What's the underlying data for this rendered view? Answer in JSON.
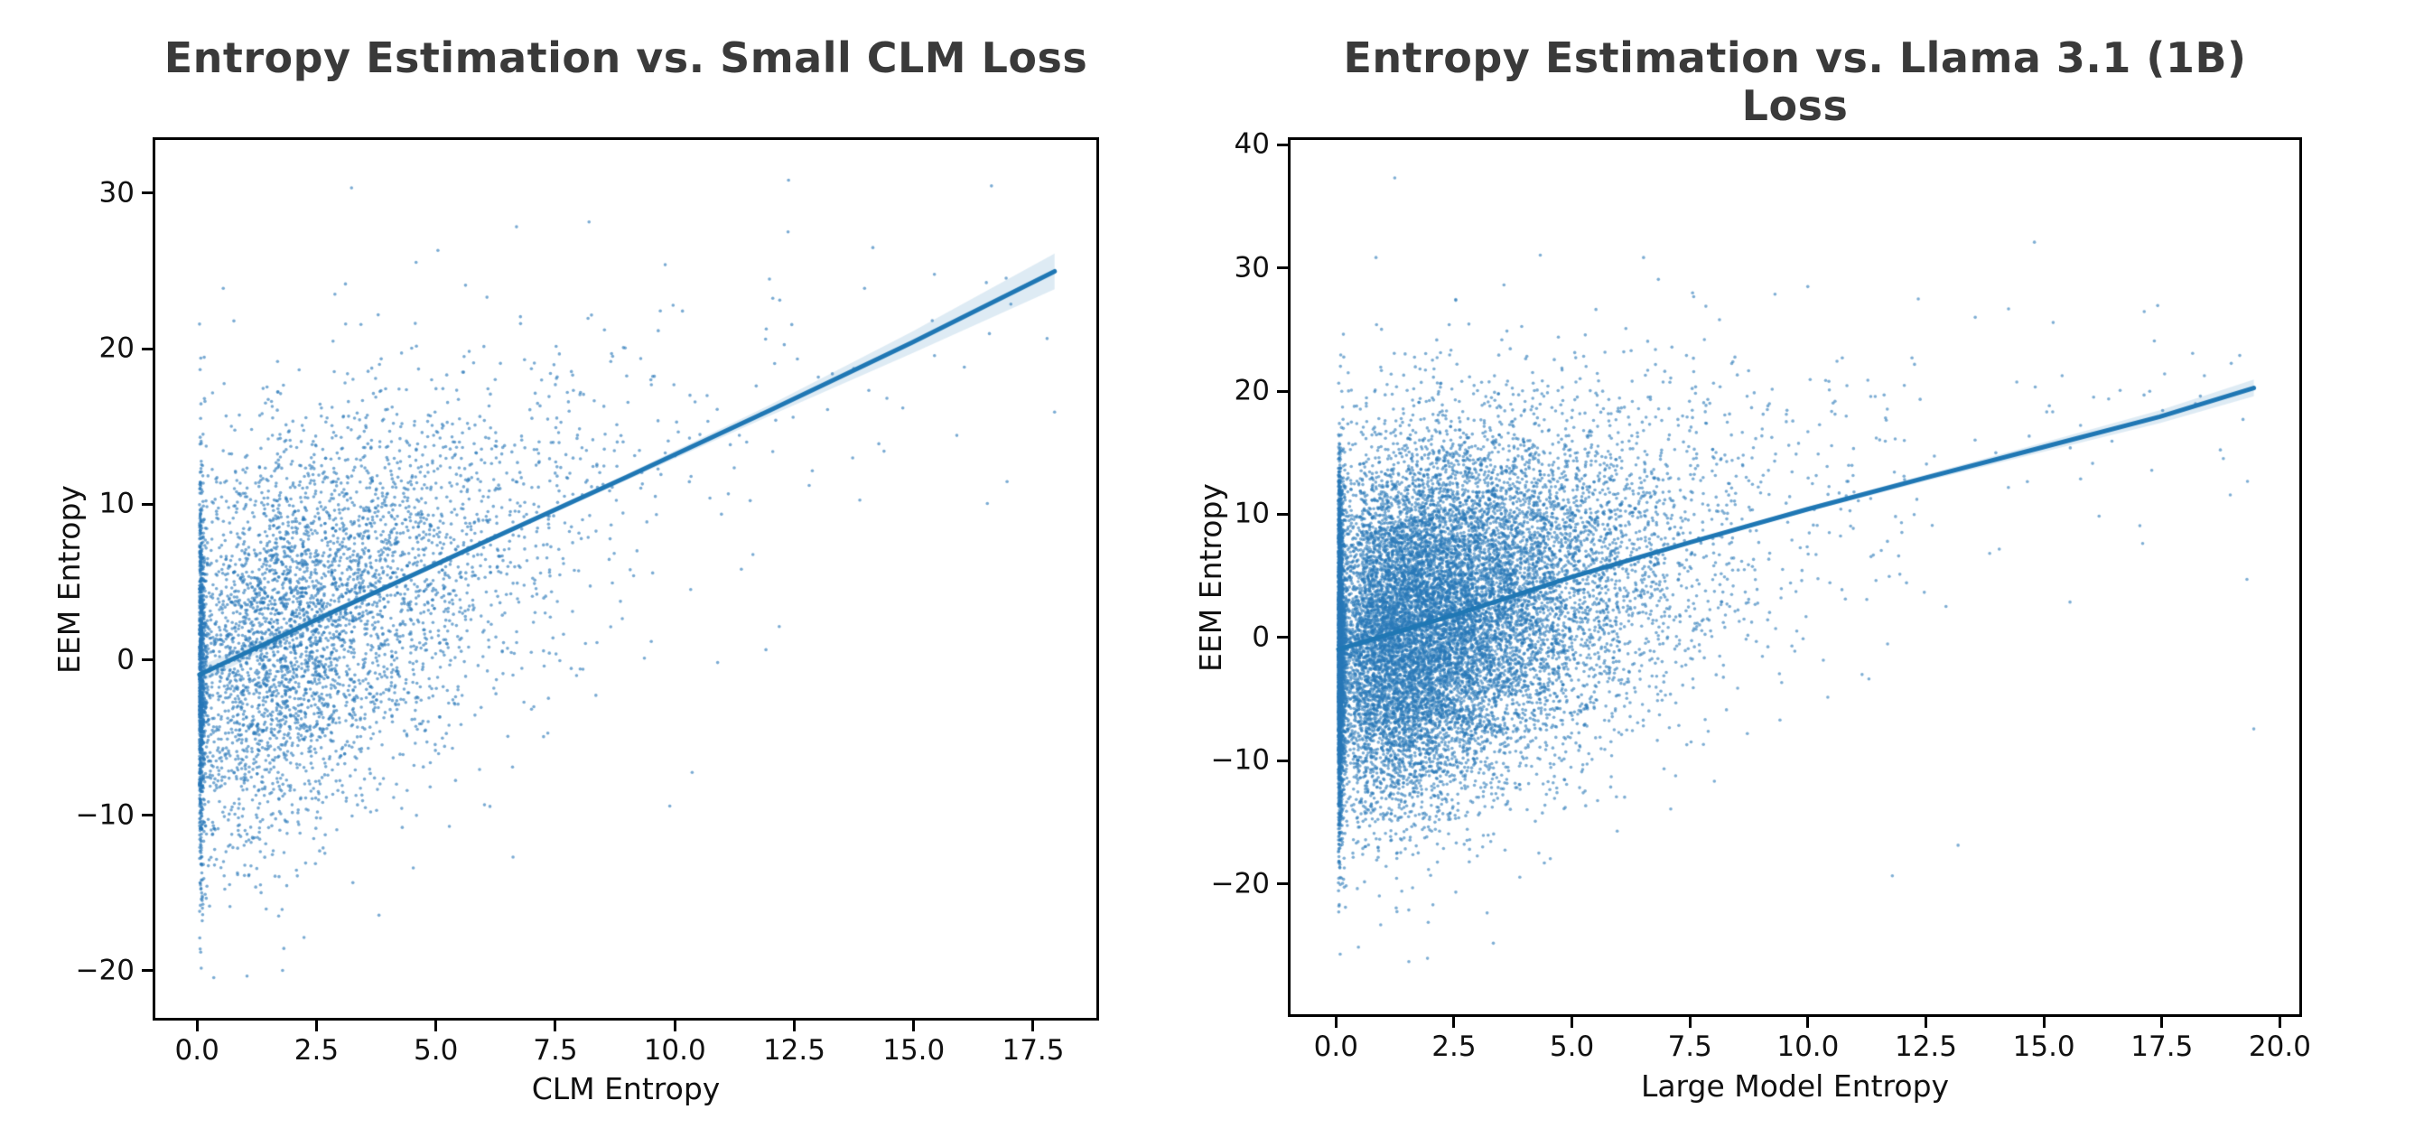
{
  "page": {
    "background": "#ffffff"
  },
  "colors": {
    "scatter_point": "#2878b8",
    "regression_line": "#1f77b4",
    "confidence_band": "#1f77b4",
    "confidence_band_alpha": 0.15,
    "spine": "#000000",
    "title_text": "#3a3a3a",
    "tick_text": "#111111",
    "axis_label_text": "#111111"
  },
  "chart_data": [
    {
      "type": "scatter",
      "title": "Entropy Estimation vs. Small CLM Loss",
      "xlabel": "CLM Entropy",
      "ylabel": "EEM Entropy",
      "xlim": [
        -0.93,
        18.88
      ],
      "ylim": [
        -23.2,
        33.6
      ],
      "xticks": [
        0,
        2.5,
        5,
        7.5,
        10,
        12.5,
        15,
        17.5
      ],
      "xtick_labels": [
        "0.0",
        "2.5",
        "5.0",
        "7.5",
        "10.0",
        "12.5",
        "15.0",
        "17.5"
      ],
      "yticks": [
        30,
        20,
        10,
        0,
        -10,
        -20
      ],
      "ytick_labels": [
        "30",
        "20",
        "10",
        "0",
        "−10",
        "−20"
      ],
      "grid": false,
      "legend": null,
      "marker_radius_px": 1.8,
      "marker_alpha": 0.62,
      "n_points": 5200,
      "seed": 7,
      "x_distribution": {
        "zero_spike_frac": 0.2,
        "zero_spike_scale": 0.05,
        "gamma_shape": 2,
        "gamma_scale": 1.55,
        "tail_frac": 0.01,
        "tail_range": [
          8,
          18
        ],
        "x_max": 18.1
      },
      "y_noise_std": 6.2,
      "y_clip": [
        -20.9,
        30.8
      ],
      "regression_line": {
        "points": [
          [
            0,
            -1.0
          ],
          [
            3,
            3.35
          ],
          [
            6,
            7.6
          ],
          [
            9,
            11.8
          ],
          [
            12,
            16.1
          ],
          [
            15,
            20.5
          ],
          [
            18,
            25.1
          ]
        ],
        "ci_halfwidth": [
          0.55,
          0.18,
          0.15,
          0.2,
          0.35,
          0.7,
          1.15
        ]
      },
      "notable_points": [
        [
          3.2,
          30.5
        ],
        [
          12.4,
          31.0
        ],
        [
          8.2,
          28.3
        ],
        [
          0.5,
          24.0
        ],
        [
          5.6,
          24.2
        ],
        [
          14.0,
          24.0
        ],
        [
          18.0,
          16.0
        ],
        [
          17.0,
          11.5
        ],
        [
          16.1,
          18.9
        ],
        [
          13.9,
          10.3
        ],
        [
          12.9,
          12.2
        ],
        [
          1.0,
          -20.5
        ],
        [
          0.3,
          -20.6
        ],
        [
          2.2,
          -18.0
        ],
        [
          4.5,
          -13.5
        ],
        [
          9.9,
          -9.5
        ],
        [
          6.6,
          -12.8
        ]
      ]
    },
    {
      "type": "scatter",
      "title": "Entropy Estimation vs. Llama 3.1 (1B) Loss",
      "xlabel": "Large Model Entropy",
      "ylabel": "EEM Entropy",
      "xlim": [
        -1.02,
        20.47
      ],
      "ylim": [
        -30.8,
        40.6
      ],
      "xticks": [
        0,
        2.5,
        5,
        7.5,
        10,
        12.5,
        15,
        17.5,
        20
      ],
      "xtick_labels": [
        "0.0",
        "2.5",
        "5.0",
        "7.5",
        "10.0",
        "12.5",
        "15.0",
        "17.5",
        "20.0"
      ],
      "yticks": [
        40,
        30,
        20,
        10,
        0,
        -10,
        -20
      ],
      "ytick_labels": [
        "40",
        "30",
        "20",
        "10",
        "0",
        "−10",
        "−20"
      ],
      "grid": false,
      "legend": null,
      "marker_radius_px": 1.8,
      "marker_alpha": 0.6,
      "n_points": 16500,
      "seed": 11,
      "x_distribution": {
        "zero_spike_frac": 0.17,
        "zero_spike_scale": 0.045,
        "gamma_shape": 2,
        "gamma_scale": 1.35,
        "tail_frac": 0.004,
        "tail_range": [
          10,
          19.5
        ],
        "x_max": 19.55
      },
      "y_noise_std": 7.1,
      "y_clip": [
        -26.8,
        37.6
      ],
      "regression_line": {
        "points": [
          [
            0,
            -1.0
          ],
          [
            2.5,
            1.85
          ],
          [
            5,
            4.95
          ],
          [
            7.5,
            7.75
          ],
          [
            10,
            10.45
          ],
          [
            12.5,
            13.0
          ],
          [
            15,
            15.5
          ],
          [
            17.5,
            18.0
          ],
          [
            19.5,
            20.35
          ]
        ],
        "ci_halfwidth": [
          0.32,
          0.14,
          0.1,
          0.12,
          0.18,
          0.26,
          0.38,
          0.52,
          0.68
        ]
      },
      "notable_points": [
        [
          1.2,
          37.5
        ],
        [
          0.8,
          31.0
        ],
        [
          4.3,
          31.2
        ],
        [
          6.5,
          31.0
        ],
        [
          2.5,
          27.5
        ],
        [
          9.3,
          28.0
        ],
        [
          19.2,
          23.0
        ],
        [
          17.6,
          21.5
        ],
        [
          19.5,
          -7.5
        ],
        [
          1.5,
          -26.5
        ],
        [
          3.3,
          -25.0
        ],
        [
          0.9,
          -23.5
        ],
        [
          13.2,
          -17.0
        ],
        [
          11.8,
          -19.5
        ]
      ]
    }
  ]
}
